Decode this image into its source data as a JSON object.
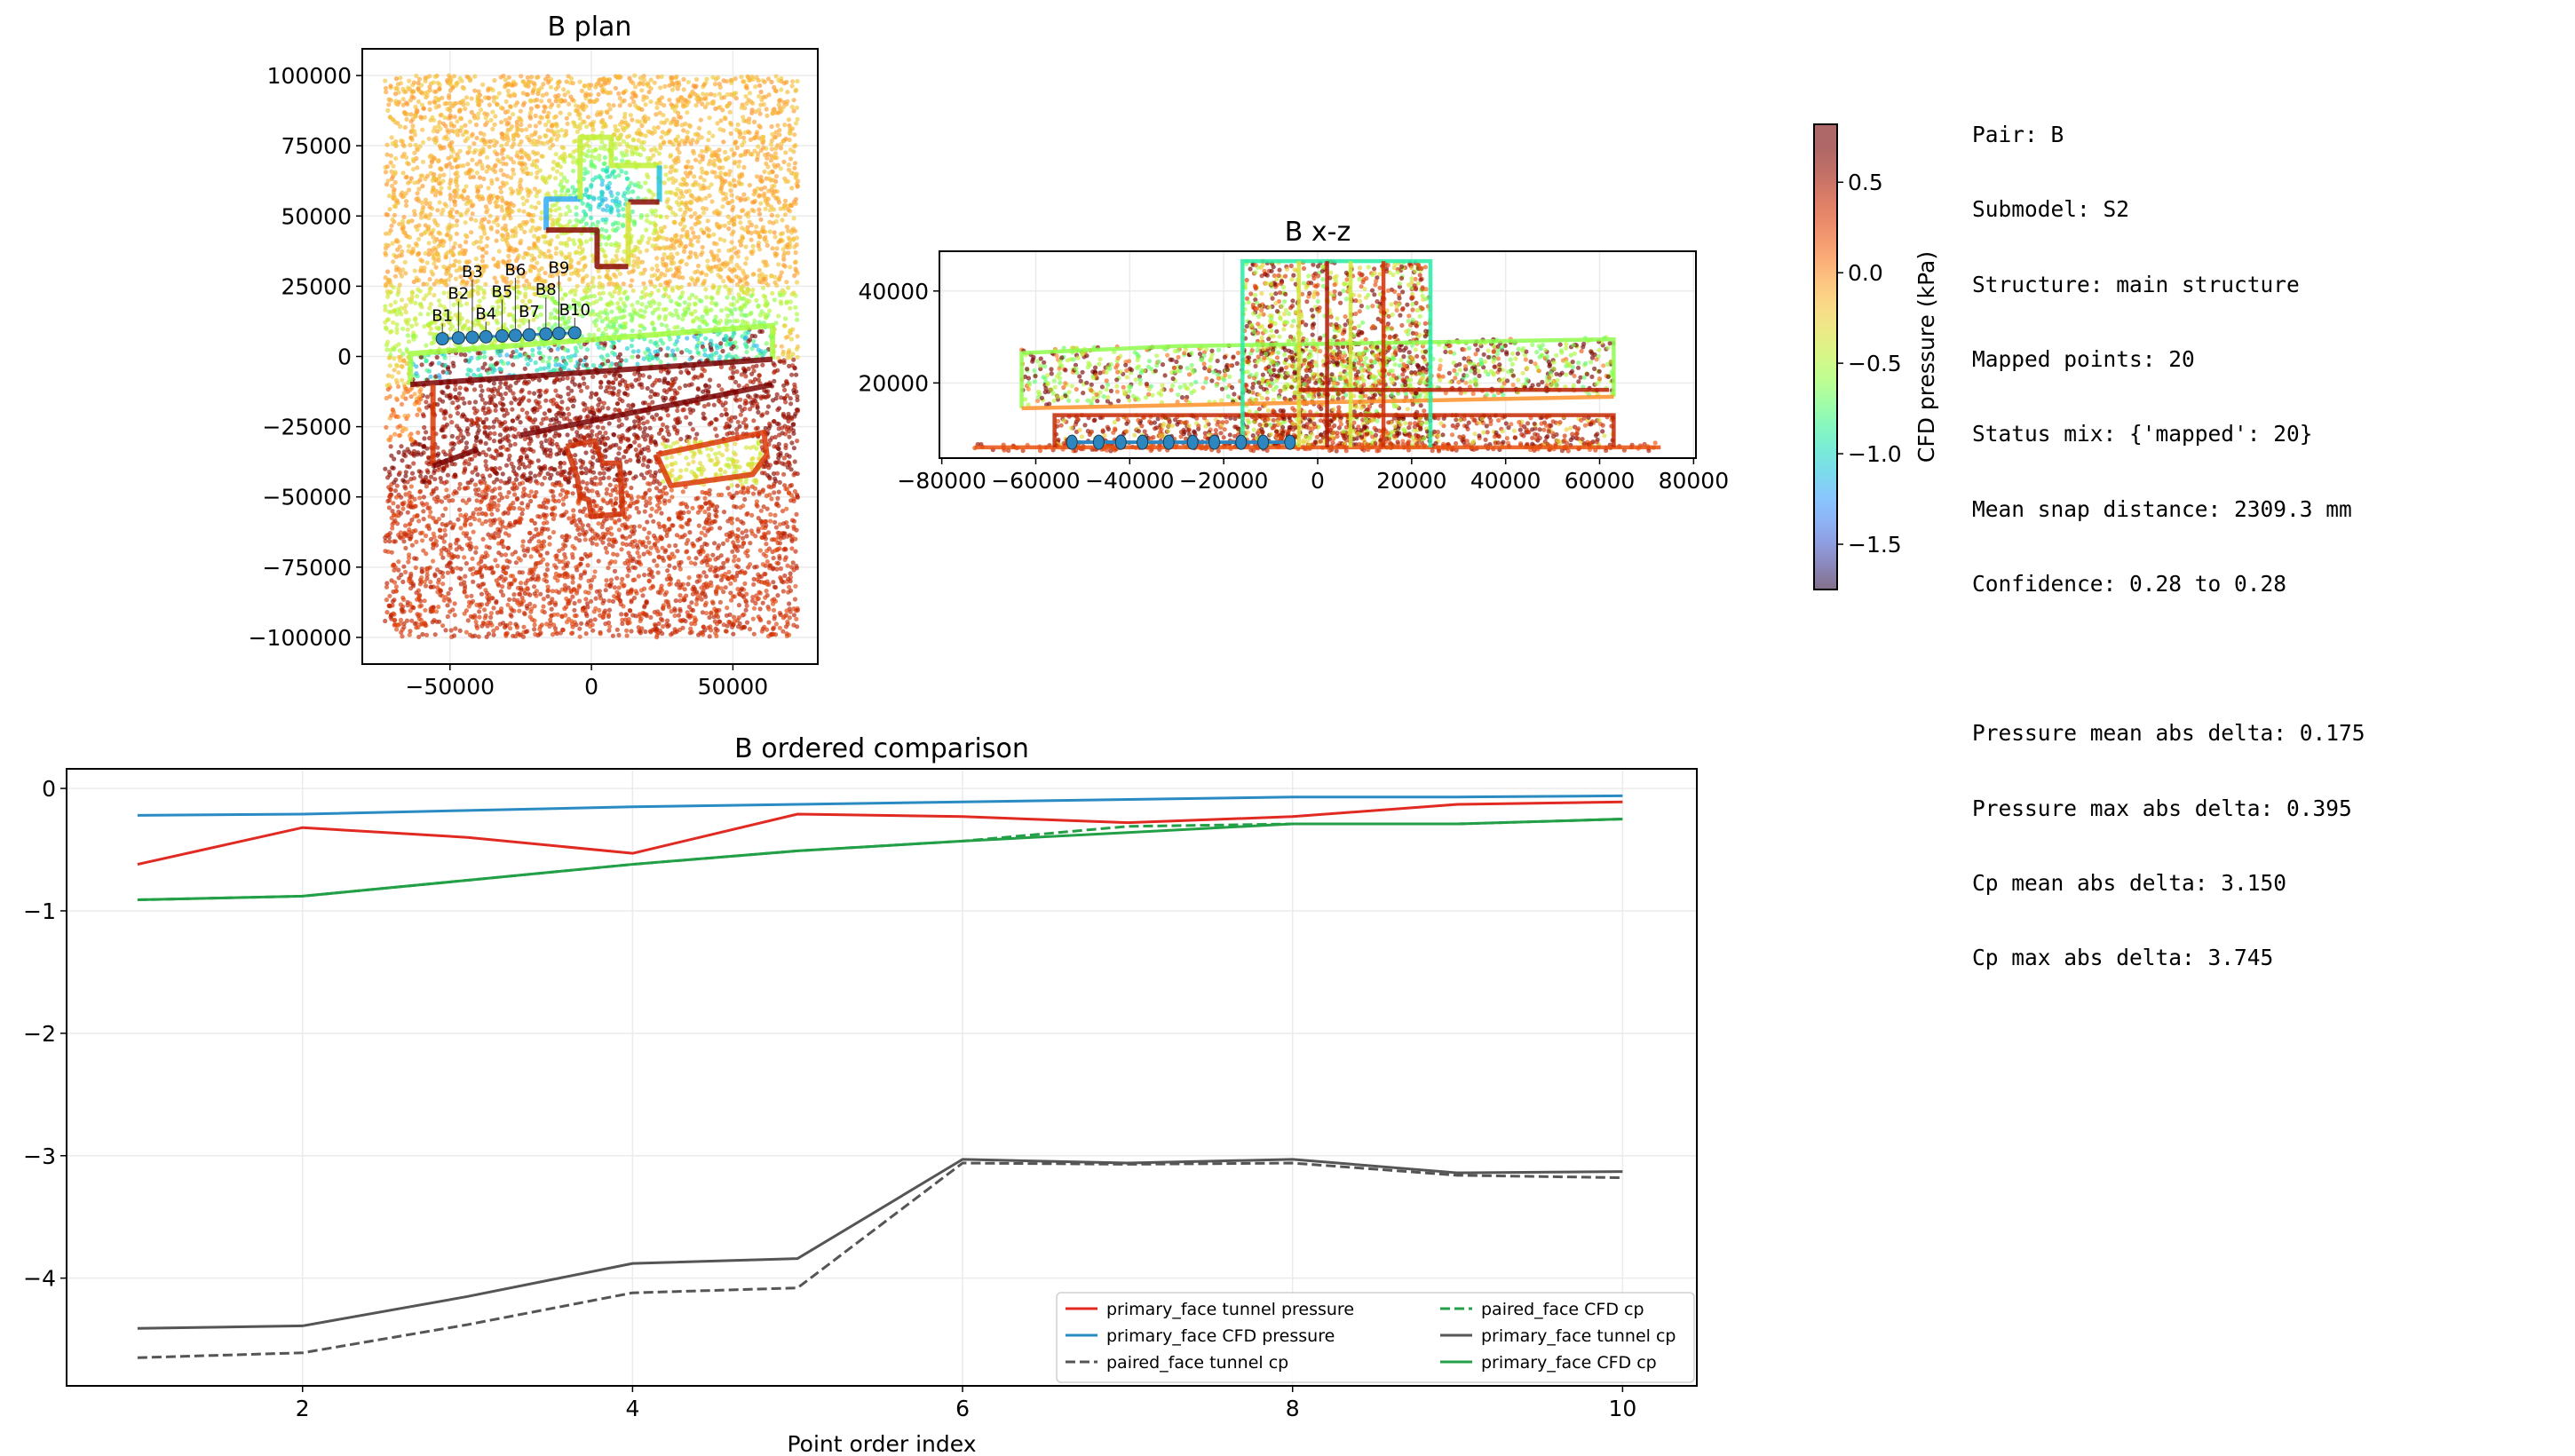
{
  "info_panel": {
    "lines": [
      "Pair: B",
      "Submodel: S2",
      "Structure: main structure",
      "Mapped points: 20",
      "Status mix: {'mapped': 20}",
      "Mean snap distance: 2309.3 mm",
      "Confidence: 0.28 to 0.28",
      "",
      "Pressure mean abs delta: 0.175",
      "Pressure max abs delta: 0.395",
      "Cp mean abs delta: 3.150",
      "Cp max abs delta: 3.745"
    ]
  },
  "chart_data": [
    {
      "id": "plan",
      "type": "scatter",
      "title": "B plan",
      "xlim": [
        -81000,
        80000
      ],
      "ylim": [
        -109500,
        109500
      ],
      "xticks": [
        -50000,
        0,
        50000
      ],
      "xtick_labels": [
        "−50000",
        "0",
        "50000"
      ],
      "yticks": [
        100000,
        75000,
        50000,
        25000,
        0,
        -25000,
        -50000,
        -75000,
        -100000
      ],
      "ytick_labels": [
        "100000",
        "75000",
        "50000",
        "25000",
        "0",
        "−25000",
        "−50000",
        "−75000",
        "−100000"
      ],
      "grid": true,
      "color_by": "CFD pressure (kPa)",
      "probes": {
        "labels": [
          "B1",
          "B2",
          "B3",
          "B4",
          "B5",
          "B6",
          "B7",
          "B8",
          "B9",
          "B10"
        ],
        "x": [
          -52700,
          -47000,
          -42100,
          -37300,
          -31600,
          -26900,
          -22000,
          -16100,
          -11500,
          -5900
        ],
        "y": [
          6300,
          6600,
          6800,
          7000,
          7300,
          7500,
          7700,
          8000,
          8200,
          8400
        ],
        "color": "#2e86c1"
      }
    },
    {
      "id": "xz",
      "type": "scatter",
      "title": "B x-z",
      "xlim": [
        -80500,
        80500
      ],
      "ylim": [
        3650,
        48650
      ],
      "xticks": [
        -80000,
        -60000,
        -40000,
        -20000,
        0,
        20000,
        40000,
        60000,
        80000
      ],
      "xtick_labels": [
        "−80000",
        "−60000",
        "−40000",
        "−20000",
        "0",
        "20000",
        "40000",
        "60000",
        "80000"
      ],
      "yticks": [
        20000,
        40000
      ],
      "ytick_labels": [
        "20000",
        "40000"
      ],
      "grid": true,
      "color_by": "CFD pressure (kPa)",
      "probes": {
        "x": [
          -52300,
          -46600,
          -41900,
          -37300,
          -31700,
          -26600,
          -22000,
          -16300,
          -11600,
          -5900
        ],
        "z": [
          7100,
          7100,
          7100,
          7100,
          7100,
          7100,
          7100,
          7100,
          7100,
          7100
        ],
        "color": "#2e86c1"
      }
    },
    {
      "id": "colorbar",
      "type": "colorbar",
      "label": "CFD pressure (kPa)",
      "colormap": "turbo",
      "alpha": 0.6,
      "range": [
        -1.75,
        0.82
      ],
      "ticks": [
        0.5,
        0.0,
        -0.5,
        -1.0,
        -1.5
      ],
      "tick_labels": [
        "0.5",
        "0.0",
        "−0.5",
        "−1.0",
        "−1.5"
      ]
    },
    {
      "id": "comparison",
      "type": "line",
      "title": "B ordered comparison",
      "xlabel": "Point order index",
      "ylabel": "",
      "xlim": [
        0.57,
        10.45
      ],
      "ylim": [
        -4.88,
        0.16
      ],
      "xticks": [
        2,
        4,
        6,
        8,
        10
      ],
      "xtick_labels": [
        "2",
        "4",
        "6",
        "8",
        "10"
      ],
      "yticks": [
        0,
        -1,
        -2,
        -3,
        -4
      ],
      "ytick_labels": [
        "0",
        "−1",
        "−2",
        "−3",
        "−4"
      ],
      "grid": true,
      "legend": "lower-right",
      "legend_columns": 2,
      "x": [
        1,
        2,
        3,
        4,
        5,
        6,
        7,
        8,
        9,
        10
      ],
      "series": [
        {
          "name": "primary_face tunnel pressure",
          "color": "#e02a22",
          "dash": "solid",
          "values": [
            -0.62,
            -0.32,
            -0.4,
            -0.53,
            -0.21,
            -0.23,
            -0.28,
            -0.23,
            -0.13,
            -0.11
          ]
        },
        {
          "name": "primary_face CFD pressure",
          "color": "#2a8bc3",
          "dash": "solid",
          "values": [
            -0.22,
            -0.21,
            -0.18,
            -0.15,
            -0.13,
            -0.11,
            -0.09,
            -0.07,
            -0.07,
            -0.06
          ]
        },
        {
          "name": "paired_face tunnel cp",
          "color": "#555555",
          "dash": "dashed",
          "values": [
            -4.65,
            -4.61,
            -4.38,
            -4.12,
            -4.08,
            -3.06,
            -3.07,
            -3.06,
            -3.16,
            -3.18
          ]
        },
        {
          "name": "paired_face CFD cp",
          "color": "#23a047",
          "dash": "dashed",
          "values": [
            -0.91,
            -0.88,
            -0.75,
            -0.62,
            -0.51,
            -0.43,
            -0.31,
            -0.29,
            -0.29,
            -0.25
          ]
        },
        {
          "name": "primary_face tunnel cp",
          "color": "#555555",
          "dash": "solid",
          "values": [
            -4.41,
            -4.39,
            -4.15,
            -3.88,
            -3.84,
            -3.03,
            -3.06,
            -3.03,
            -3.14,
            -3.13
          ]
        },
        {
          "name": "primary_face CFD cp",
          "color": "#23a047",
          "dash": "solid",
          "values": [
            -0.91,
            -0.88,
            -0.75,
            -0.62,
            -0.51,
            -0.43,
            -0.36,
            -0.29,
            -0.29,
            -0.25
          ]
        }
      ]
    }
  ]
}
